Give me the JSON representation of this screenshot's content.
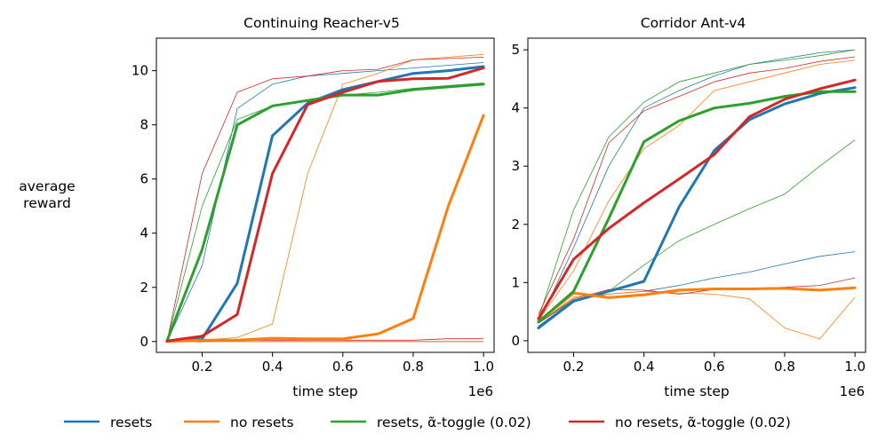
{
  "figure": {
    "ylabel_line1": "average",
    "ylabel_line2": "reward",
    "xlabel": "time step",
    "sci_multiplier": "1e6",
    "legend": [
      {
        "label": "resets",
        "color": "#1f77b4"
      },
      {
        "label": "no resets",
        "color": "#ff7f0e"
      },
      {
        "label": "resets, α̃-toggle (0.02)",
        "color": "#2ca02c"
      },
      {
        "label": "no resets, α̃-toggle (0.02)",
        "color": "#d62728"
      }
    ]
  },
  "chart_data": [
    {
      "type": "line",
      "title": "Continuing Reacher-v5",
      "xlabel": "time step",
      "ylabel": "average reward",
      "xlim": [
        0.07,
        1.03
      ],
      "ylim": [
        -0.4,
        11.2
      ],
      "xticks": [
        0.2,
        0.4,
        0.6,
        0.8,
        1.0
      ],
      "xtick_labels": [
        "0.2",
        "0.4",
        "0.6",
        "0.8",
        "1.0"
      ],
      "yticks": [
        0,
        2,
        4,
        6,
        8,
        10
      ],
      "ytick_labels": [
        "0",
        "2",
        "4",
        "6",
        "8",
        "10"
      ],
      "x": [
        0.1,
        0.2,
        0.3,
        0.4,
        0.5,
        0.6,
        0.7,
        0.8,
        0.9,
        1.0
      ],
      "series": [
        {
          "name": "resets",
          "color": "#1f77b4",
          "values": [
            0.02,
            0.1,
            2.15,
            7.6,
            8.8,
            9.3,
            9.6,
            9.9,
            10.0,
            10.15
          ],
          "runs": [
            [
              0.0,
              2.8,
              8.6,
              9.5,
              9.8,
              9.9,
              10.0,
              10.1,
              10.2,
              10.3
            ],
            [
              0.0,
              0.0,
              0.0,
              0.0,
              0.0,
              0.0,
              0.0,
              0.0,
              0.0,
              0.0
            ]
          ]
        },
        {
          "name": "no resets",
          "color": "#ff7f0e",
          "values": [
            0.0,
            0.05,
            0.05,
            0.12,
            0.1,
            0.1,
            0.28,
            0.85,
            5.0,
            8.35
          ],
          "runs": [
            [
              0.0,
              0.05,
              0.15,
              0.65,
              6.2,
              9.5,
              9.9,
              10.4,
              10.5,
              10.6
            ],
            [
              0.0,
              0.0,
              0.0,
              0.0,
              0.0,
              0.0,
              0.0,
              0.0,
              0.0,
              0.0
            ]
          ]
        },
        {
          "name": "resets, α̃-toggle (0.02)",
          "color": "#2ca02c",
          "values": [
            0.02,
            3.4,
            8.0,
            8.7,
            8.9,
            9.1,
            9.1,
            9.3,
            9.4,
            9.5
          ],
          "runs": [
            [
              0.0,
              5.0,
              8.2,
              8.7,
              8.9,
              9.1,
              9.2,
              9.35,
              9.45,
              9.55
            ]
          ]
        },
        {
          "name": "no resets, α̃-toggle (0.02)",
          "color": "#d62728",
          "values": [
            0.02,
            0.2,
            1.0,
            6.2,
            8.75,
            9.2,
            9.6,
            9.7,
            9.72,
            10.1
          ],
          "runs": [
            [
              0.0,
              6.2,
              9.2,
              9.7,
              9.8,
              10.0,
              10.05,
              10.4,
              10.45,
              10.5
            ],
            [
              0.0,
              0.0,
              0.05,
              0.05,
              0.05,
              0.05,
              0.05,
              0.05,
              0.1,
              0.1
            ]
          ]
        }
      ]
    },
    {
      "type": "line",
      "title": "Corridor Ant-v4",
      "xlabel": "time step",
      "ylabel": "average reward",
      "xlim": [
        0.07,
        1.03
      ],
      "ylim": [
        -0.2,
        5.2
      ],
      "xticks": [
        0.2,
        0.4,
        0.6,
        0.8,
        1.0
      ],
      "xtick_labels": [
        "0.2",
        "0.4",
        "0.6",
        "0.8",
        "1.0"
      ],
      "yticks": [
        0,
        1,
        2,
        3,
        4,
        5
      ],
      "ytick_labels": [
        "0",
        "1",
        "2",
        "3",
        "4",
        "5"
      ],
      "x": [
        0.1,
        0.2,
        0.3,
        0.4,
        0.5,
        0.6,
        0.7,
        0.8,
        0.9,
        1.0
      ],
      "series": [
        {
          "name": "resets",
          "color": "#1f77b4",
          "values": [
            0.22,
            0.68,
            0.85,
            1.02,
            2.3,
            3.27,
            3.8,
            4.07,
            4.25,
            4.35
          ],
          "runs": [
            [
              0.3,
              1.6,
              3.0,
              4.0,
              4.3,
              4.55,
              4.75,
              4.85,
              4.95,
              5.0
            ],
            [
              0.25,
              0.7,
              0.8,
              0.85,
              0.95,
              1.08,
              1.18,
              1.32,
              1.45,
              1.53
            ]
          ]
        },
        {
          "name": "no resets",
          "color": "#ff7f0e",
          "values": [
            0.33,
            0.82,
            0.74,
            0.79,
            0.87,
            0.89,
            0.89,
            0.9,
            0.87,
            0.91
          ],
          "runs": [
            [
              0.35,
              1.2,
              2.4,
              3.3,
              3.7,
              4.3,
              4.45,
              4.6,
              4.75,
              4.82
            ],
            [
              0.3,
              0.75,
              0.8,
              0.85,
              0.82,
              0.8,
              0.72,
              0.22,
              0.03,
              0.75
            ]
          ]
        },
        {
          "name": "resets, α̃-toggle (0.02)",
          "color": "#2ca02c",
          "values": [
            0.32,
            0.85,
            2.1,
            3.42,
            3.78,
            4.0,
            4.08,
            4.2,
            4.28,
            4.28
          ],
          "runs": [
            [
              0.38,
              2.25,
              3.5,
              4.1,
              4.45,
              4.6,
              4.75,
              4.82,
              4.9,
              5.0
            ],
            [
              0.3,
              0.7,
              0.85,
              1.3,
              1.72,
              2.0,
              2.27,
              2.52,
              3.0,
              3.45
            ]
          ]
        },
        {
          "name": "no resets, α̃-toggle (0.02)",
          "color": "#d62728",
          "values": [
            0.38,
            1.4,
            1.93,
            2.37,
            2.78,
            3.2,
            3.85,
            4.15,
            4.33,
            4.48
          ],
          "runs": [
            [
              0.45,
              1.75,
              3.4,
              3.95,
              4.2,
              4.45,
              4.6,
              4.68,
              4.8,
              4.88
            ],
            [
              0.3,
              0.72,
              0.88,
              0.87,
              0.8,
              0.88,
              0.9,
              0.92,
              0.95,
              1.08
            ]
          ]
        }
      ]
    }
  ]
}
